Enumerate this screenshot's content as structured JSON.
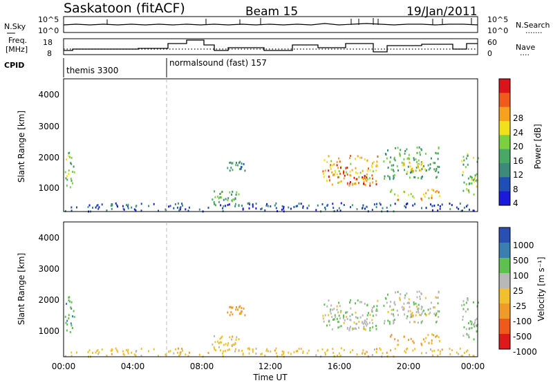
{
  "header": {
    "station": "Saskatoon (fitACF)",
    "beam": "Beam 15",
    "date": "19/Jan/2011"
  },
  "noise_panel": {
    "left_label": "N.Sky",
    "left_ticks": [
      "10^5",
      "10^0"
    ],
    "right_ticks": [
      "10^5",
      "10^0"
    ],
    "right_label": "N.Search",
    "right_line_label": "......."
  },
  "freq_panel": {
    "left_label_1": "Freq.",
    "left_label_2": "[MHz]",
    "left_ticks": [
      "18",
      "8"
    ],
    "right_ticks": [
      "60",
      "0"
    ],
    "right_label": "Nave",
    "right_line_label": "...."
  },
  "cpid": {
    "label": "CPID",
    "programs": [
      {
        "name": "themis 3300",
        "start_hour": 0
      },
      {
        "name": "normalsound (fast) 157",
        "start_hour": 6
      }
    ]
  },
  "power_panel": {
    "ylabel": "Slant Range [km]",
    "yticks": [
      "4000",
      "3000",
      "2000",
      "1000"
    ],
    "colorbar_label": "Power [dB]",
    "colorbar_ticks": [
      "28",
      "24",
      "20",
      "16",
      "12",
      "8",
      "4"
    ]
  },
  "velocity_panel": {
    "ylabel": "Slant Range [km]",
    "yticks": [
      "4000",
      "3000",
      "2000",
      "1000"
    ],
    "colorbar_label": "Velocity [m s⁻¹]",
    "colorbar_ticks": [
      "1000",
      "500",
      "100",
      "25",
      "-25",
      "-100",
      "-500",
      "-1000"
    ]
  },
  "xaxis": {
    "ticks": [
      "00:00",
      "04:00",
      "08:00",
      "12:00",
      "16:00",
      "20:00",
      "00:00"
    ],
    "label": "Time UT"
  },
  "chart_data": {
    "type": "heatmap",
    "title": "Saskatoon (fitACF)",
    "x_range_hours": [
      0,
      24
    ],
    "y_range_km": [
      180,
      4500
    ],
    "power_colormap": [
      "#1a1ad8",
      "#1f4fb4",
      "#3d8a7a",
      "#4aa866",
      "#7ccf3e",
      "#f2e01c",
      "#f7a21e",
      "#ee5b1a",
      "#d9141a"
    ],
    "velocity_colormap": [
      "#2a4fb3",
      "#3a7fb0",
      "#5fbf50",
      "#b8b8b8",
      "#f0c02e",
      "#f09a2a",
      "#ef5a1c",
      "#dd1a1a"
    ],
    "scatter_regions": [
      {
        "t0": 0.0,
        "t1": 0.6,
        "r0": 850,
        "r1": 2150,
        "power_dB": 14,
        "velocity": 80
      },
      {
        "t0": 8.5,
        "t1": 10.6,
        "r0": 350,
        "r1": 900,
        "power_dB": 12,
        "velocity": -60
      },
      {
        "t0": 9.4,
        "t1": 10.5,
        "r0": 1500,
        "r1": 1800,
        "power_dB": 10,
        "velocity": -150
      },
      {
        "t0": 15.0,
        "t1": 18.2,
        "r0": 1050,
        "r1": 2000,
        "power_dB": 20,
        "velocity": 10
      },
      {
        "t0": 15.0,
        "t1": 16.5,
        "r0": 1300,
        "r1": 1700,
        "power_dB": 24,
        "velocity": 15
      },
      {
        "t0": 16.5,
        "t1": 18.3,
        "r0": 1000,
        "r1": 1400,
        "power_dB": 26,
        "velocity": 10
      },
      {
        "t0": 18.5,
        "t1": 21.8,
        "r0": 1200,
        "r1": 2300,
        "power_dB": 12,
        "velocity": 5
      },
      {
        "t0": 18.8,
        "t1": 21.8,
        "r0": 550,
        "r1": 900,
        "power_dB": 20,
        "velocity": -120
      },
      {
        "t0": 19.5,
        "t1": 21.0,
        "r0": 1500,
        "r1": 1800,
        "power_dB": 18,
        "velocity": 0
      },
      {
        "t0": 23.0,
        "t1": 24.0,
        "r0": 700,
        "r1": 2200,
        "power_dB": 14,
        "velocity": 20
      },
      {
        "t0": 0.0,
        "t1": 24.0,
        "r0": 180,
        "r1": 450,
        "power_dB": 6,
        "velocity": -60
      }
    ]
  }
}
